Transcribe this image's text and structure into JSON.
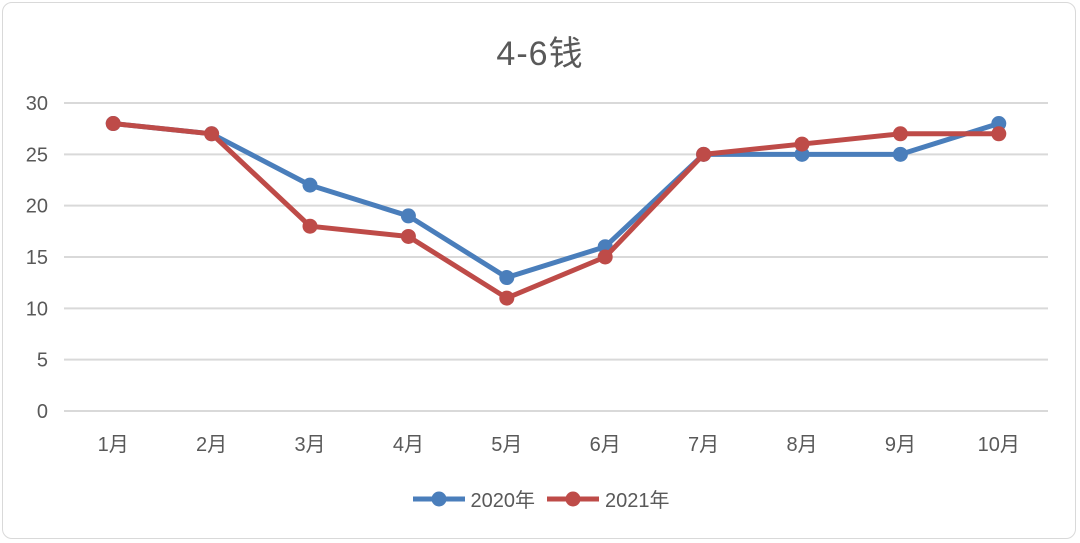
{
  "chart_data": {
    "type": "line",
    "title": "4-6钱",
    "categories": [
      "1月",
      "2月",
      "3月",
      "4月",
      "5月",
      "6月",
      "7月",
      "8月",
      "9月",
      "10月"
    ],
    "series": [
      {
        "name": "2020年",
        "color": "#4a7ebb",
        "values": [
          28,
          27,
          22,
          19,
          13,
          16,
          25,
          25,
          25,
          28
        ]
      },
      {
        "name": "2021年",
        "color": "#be4b48",
        "values": [
          28,
          27,
          18,
          17,
          11,
          15,
          25,
          26,
          27,
          27
        ]
      }
    ],
    "ylim": [
      0,
      30
    ],
    "yticks": [
      0,
      5,
      10,
      15,
      20,
      25,
      30
    ],
    "xlabel": "",
    "ylabel": "",
    "grid": true,
    "legend": "bottom"
  }
}
